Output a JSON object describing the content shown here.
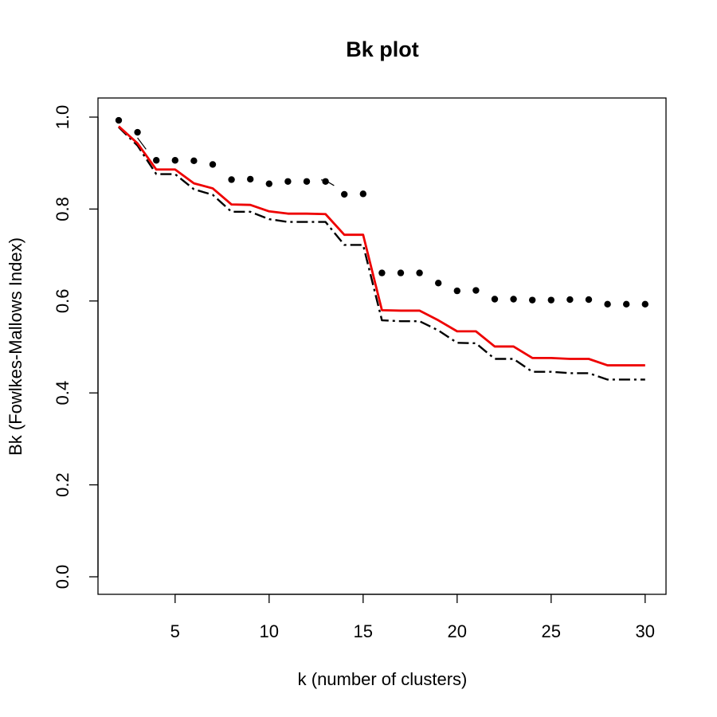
{
  "chart_data": {
    "type": "line",
    "title": "Bk plot",
    "xlabel": "k (number of clusters)",
    "ylabel": "Bk (Fowlkes-Mallows Index)",
    "xlim": [
      2,
      30
    ],
    "ylim": [
      0,
      1
    ],
    "xticks": [
      5,
      10,
      15,
      20,
      25,
      30
    ],
    "yticks": [
      "0.0",
      "0.2",
      "0.4",
      "0.6",
      "0.8",
      "1.0"
    ],
    "grid": false,
    "legend": "none",
    "x": [
      2,
      3,
      4,
      5,
      6,
      7,
      8,
      9,
      10,
      11,
      12,
      13,
      14,
      15,
      16,
      17,
      18,
      19,
      20,
      21,
      22,
      23,
      24,
      25,
      26,
      27,
      28,
      29,
      30
    ],
    "series": [
      {
        "style": "points",
        "color": "#000000",
        "values": [
          0.993,
          0.967,
          0.906,
          0.906,
          0.905,
          0.897,
          0.864,
          0.865,
          0.855,
          0.86,
          0.86,
          0.86,
          0.832,
          0.833,
          0.661,
          0.661,
          0.661,
          0.639,
          0.622,
          0.623,
          0.604,
          0.604,
          0.602,
          0.602,
          0.603,
          0.603,
          0.593,
          0.593,
          0.593
        ]
      },
      {
        "style": "solid",
        "color": "#ee0000",
        "values": [
          0.98,
          0.943,
          0.886,
          0.886,
          0.856,
          0.845,
          0.81,
          0.809,
          0.795,
          0.79,
          0.79,
          0.789,
          0.744,
          0.744,
          0.58,
          0.579,
          0.579,
          0.558,
          0.534,
          0.534,
          0.501,
          0.501,
          0.476,
          0.476,
          0.474,
          0.474,
          0.46,
          0.46,
          0.46
        ]
      },
      {
        "style": "dashed",
        "color": "#000000",
        "values": [
          0.978,
          0.938,
          0.876,
          0.876,
          0.843,
          0.831,
          0.794,
          0.794,
          0.778,
          0.772,
          0.772,
          0.772,
          0.722,
          0.722,
          0.558,
          0.556,
          0.556,
          0.536,
          0.509,
          0.508,
          0.474,
          0.474,
          0.446,
          0.446,
          0.443,
          0.443,
          0.429,
          0.429,
          0.429
        ]
      }
    ],
    "bound_line": {
      "x": [
        3,
        4,
        8,
        13,
        15,
        16
      ],
      "values": [
        0.955,
        0.9,
        0.895,
        0.862,
        0.814,
        0.68
      ]
    }
  }
}
